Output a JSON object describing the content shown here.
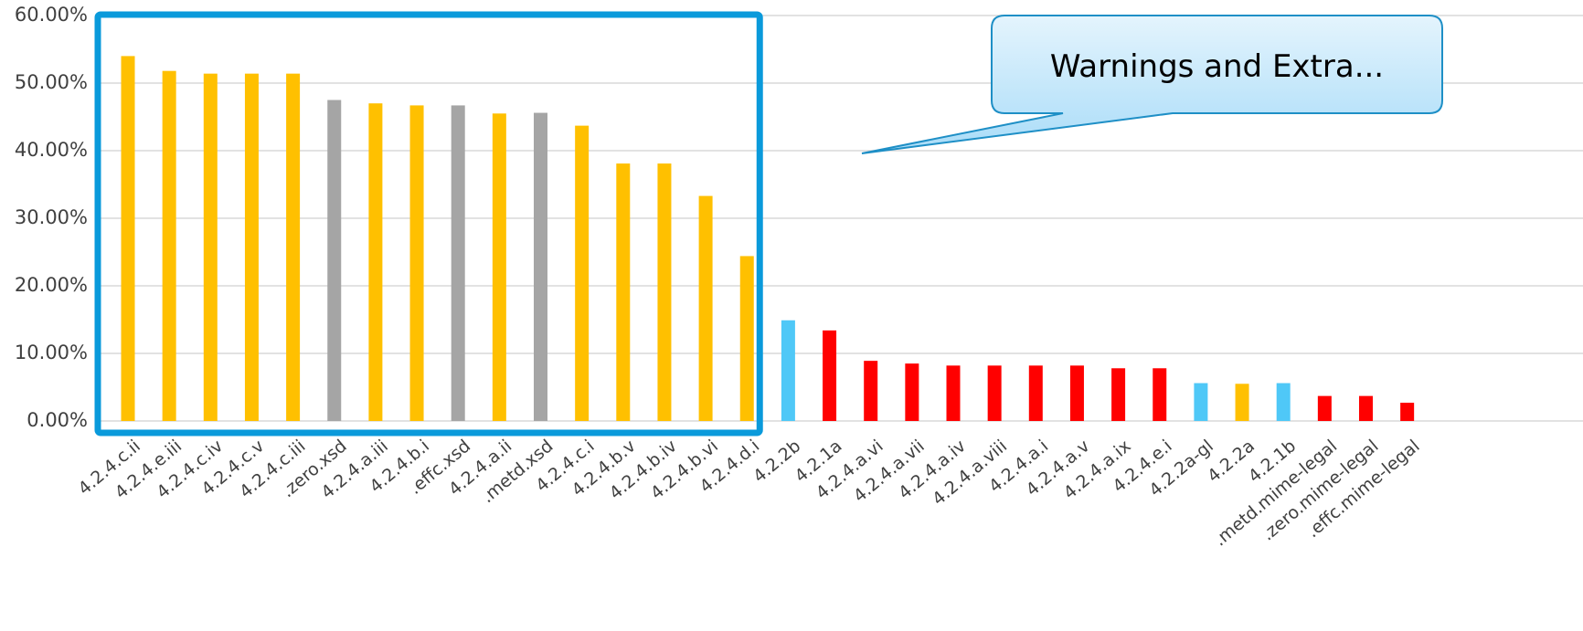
{
  "chart_data": {
    "type": "bar",
    "categories": [
      "4.2.4.c.ii",
      "4.2.4.e.iii",
      "4.2.4.c.iv",
      "4.2.4.c.v",
      "4.2.4.c.iii",
      ".zero.xsd",
      "4.2.4.a.iii",
      "4.2.4.b.i",
      ".effc.xsd",
      "4.2.4.a.ii",
      ".metd.xsd",
      "4.2.4.c.i",
      "4.2.4.b.v",
      "4.2.4.b.iv",
      "4.2.4.b.vi",
      "4.2.4.d.i",
      "4.2.2b",
      "4.2.1a",
      "4.2.4.a.vi",
      "4.2.4.a.vii",
      "4.2.4.a.iv",
      "4.2.4.a.viii",
      "4.2.4.a.i",
      "4.2.4.a.v",
      "4.2.4.a.ix",
      "4.2.4.e.i",
      "4.2.2a-gl",
      "4.2.2a",
      "4.2.1b",
      ".metd.mime-legal",
      ".zero.mime-legal",
      ".effc.mime-legal"
    ],
    "values": [
      54.0,
      51.8,
      51.4,
      51.4,
      51.4,
      47.5,
      47.0,
      46.7,
      46.7,
      45.5,
      45.6,
      43.7,
      38.1,
      38.1,
      33.3,
      24.4,
      14.9,
      13.4,
      8.9,
      8.5,
      8.2,
      8.2,
      8.2,
      8.2,
      7.8,
      7.8,
      5.6,
      5.5,
      5.6,
      3.7,
      3.7,
      2.7
    ],
    "colors": [
      "#FFC000",
      "#FFC000",
      "#FFC000",
      "#FFC000",
      "#FFC000",
      "#A5A5A5",
      "#FFC000",
      "#FFC000",
      "#A5A5A5",
      "#FFC000",
      "#A5A5A5",
      "#FFC000",
      "#FFC000",
      "#FFC000",
      "#FFC000",
      "#FFC000",
      "#4FC8F7",
      "#FF0000",
      "#FF0000",
      "#FF0000",
      "#FF0000",
      "#FF0000",
      "#FF0000",
      "#FF0000",
      "#FF0000",
      "#FF0000",
      "#4FC8F7",
      "#FFC000",
      "#4FC8F7",
      "#FF0000",
      "#FF0000",
      "#FF0000"
    ],
    "yticks": [
      "0.00%",
      "10.00%",
      "20.00%",
      "30.00%",
      "40.00%",
      "50.00%",
      "60.00%"
    ],
    "ylim": [
      0,
      60
    ],
    "grid": true,
    "title": "",
    "xlabel": "",
    "ylabel": "",
    "callout": {
      "text": "Warnings and Extra...",
      "fill_color": "#A9DCF8",
      "border_color": "#1E8FC6"
    },
    "highlight_box": {
      "from_category": "4.2.4.c.ii",
      "to_category": "4.2.4.d.i",
      "color": "#0A9ADB"
    }
  }
}
